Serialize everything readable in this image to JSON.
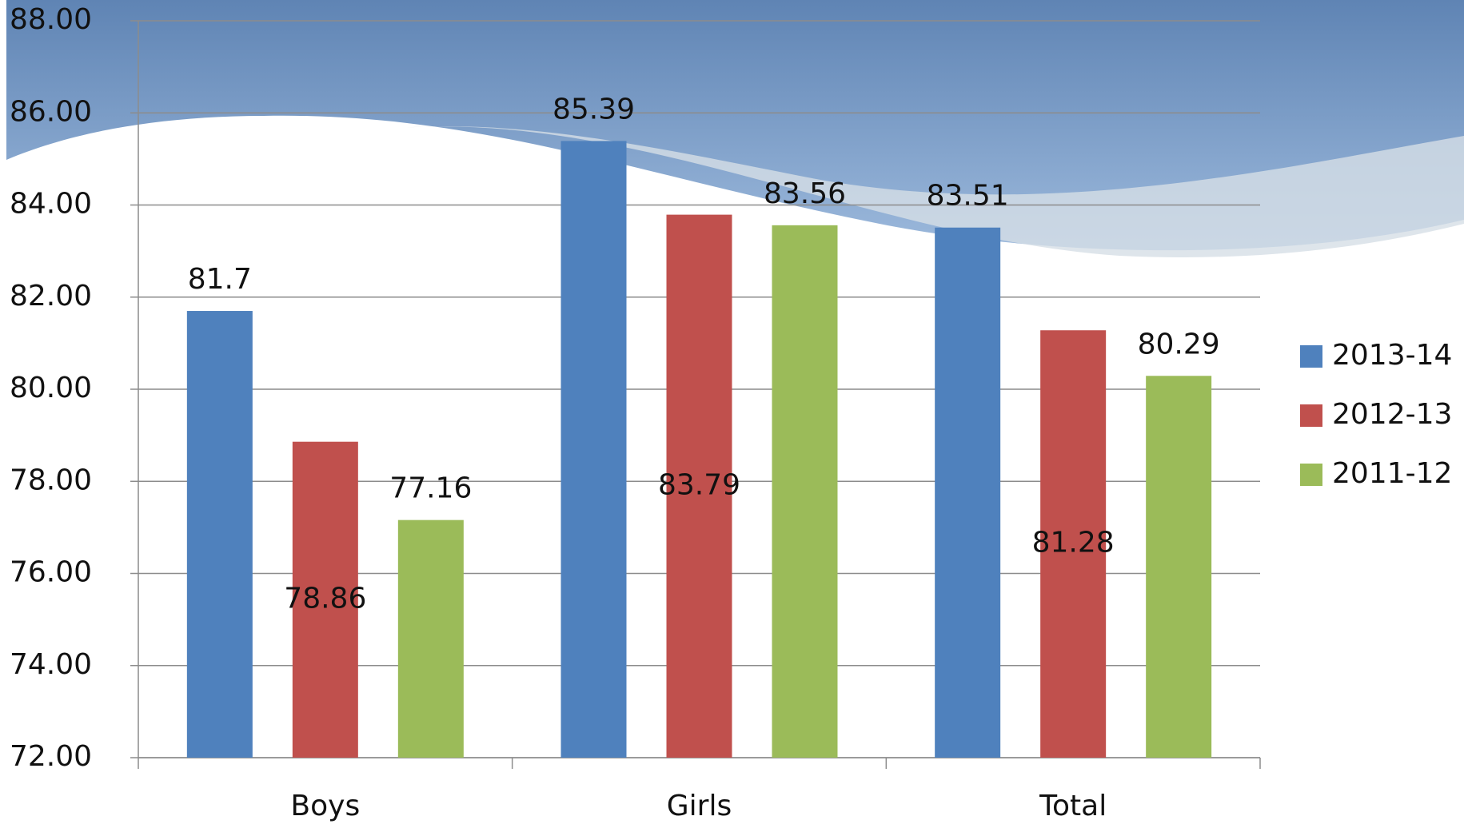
{
  "chart_data": {
    "type": "bar",
    "categories": [
      "Boys",
      "Girls",
      "Total"
    ],
    "series": [
      {
        "name": "2013-14",
        "color": "#4f81bd",
        "values": [
          81.7,
          85.39,
          83.51
        ]
      },
      {
        "name": "2012-13",
        "color": "#c0504d",
        "values": [
          78.86,
          83.79,
          81.28
        ]
      },
      {
        "name": "2011-12",
        "color": "#9bbb59",
        "values": [
          77.16,
          83.56,
          80.29
        ]
      }
    ],
    "ylim": [
      72,
      88
    ],
    "yticks": [
      {
        "value": 72,
        "label": "72.00"
      },
      {
        "value": 74,
        "label": "74.00"
      },
      {
        "value": 76,
        "label": "76.00"
      },
      {
        "value": 78,
        "label": "78.00"
      },
      {
        "value": 80,
        "label": "80.00"
      },
      {
        "value": 82,
        "label": "82.00"
      },
      {
        "value": 84,
        "label": "84.00"
      },
      {
        "value": 86,
        "label": "86.00"
      },
      {
        "value": 88,
        "label": "88.00"
      }
    ],
    "grid": true,
    "legend": "right"
  }
}
